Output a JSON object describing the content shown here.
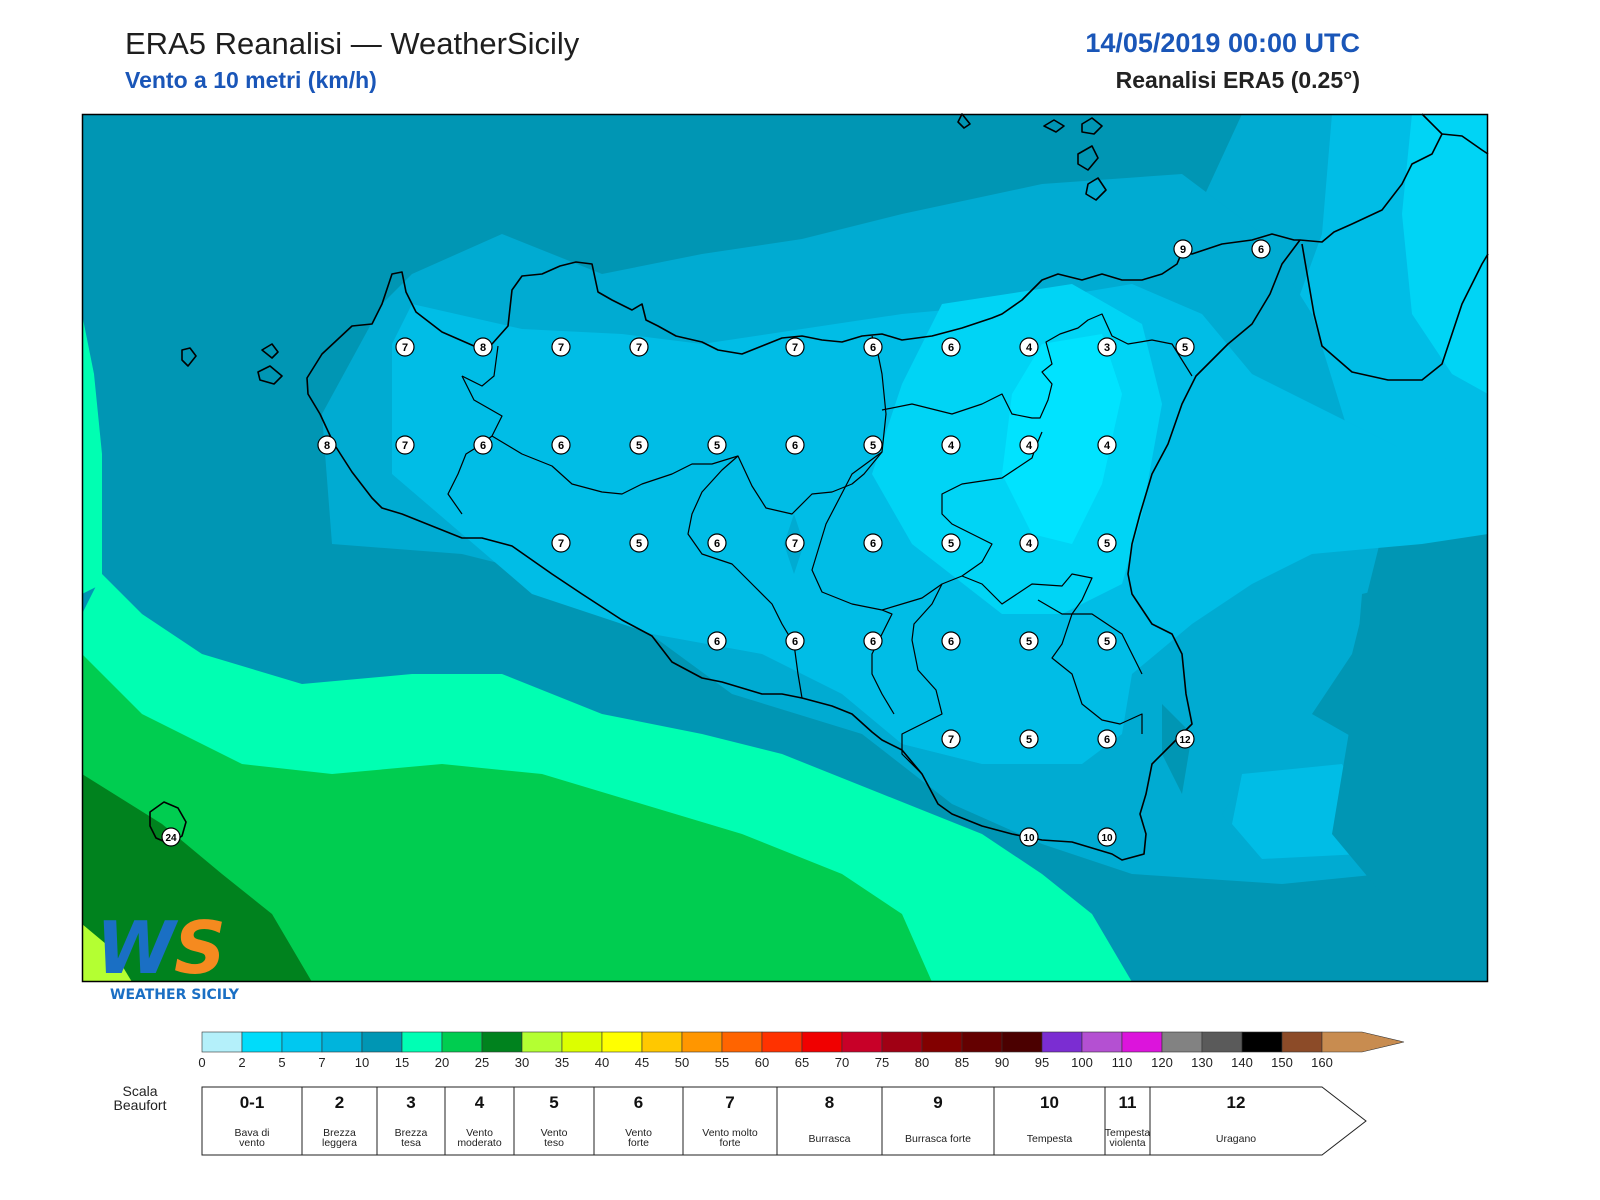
{
  "header": {
    "title": "ERA5 Reanalisi — WeatherSicily",
    "subtitle": "Vento a 10 metri (km/h)",
    "datetime": "14/05/2019 00:00 UTC",
    "model": "Reanalisi ERA5 (0.25°)"
  },
  "colors": {
    "sea_base": "#0096b4",
    "band_5_7": "#00bde6",
    "band_7_10": "#00abd2",
    "band_2_5": "#00d4f5",
    "band_15_20": "#00ffb2",
    "band_20_25": "#00cd50",
    "band_25_30": "#00821e",
    "band_30_35": "#b4ff32",
    "coast": "#000000"
  },
  "wind_labels": [
    {
      "lon_idx": 0,
      "value": "7"
    },
    {
      "value": "8"
    },
    {
      "value": "7"
    },
    {
      "value": "7"
    },
    {
      "value": "7"
    },
    {
      "value": "6"
    },
    {
      "value": "6"
    },
    {
      "value": "4"
    },
    {
      "value": "3"
    },
    {
      "value": "5"
    },
    {
      "value": "8"
    },
    {
      "value": "7"
    },
    {
      "value": "6"
    },
    {
      "value": "6"
    },
    {
      "value": "5"
    },
    {
      "value": "5"
    },
    {
      "value": "6"
    },
    {
      "value": "5"
    },
    {
      "value": "4"
    },
    {
      "value": "4"
    },
    {
      "value": "4"
    },
    {
      "value": "7"
    },
    {
      "value": "5"
    },
    {
      "value": "6"
    },
    {
      "value": "7"
    },
    {
      "value": "6"
    },
    {
      "value": "5"
    },
    {
      "value": "4"
    },
    {
      "value": "5"
    },
    {
      "value": "6"
    },
    {
      "value": "6"
    },
    {
      "value": "6"
    },
    {
      "value": "6"
    },
    {
      "value": "5"
    },
    {
      "value": "5"
    },
    {
      "value": "7"
    },
    {
      "value": "5"
    },
    {
      "value": "6"
    },
    {
      "value": "12"
    },
    {
      "value": "10"
    },
    {
      "value": "10"
    },
    {
      "value": "9"
    },
    {
      "value": "6"
    },
    {
      "value": "24"
    }
  ],
  "colorbar": {
    "ticks": [
      "0",
      "2",
      "5",
      "7",
      "10",
      "15",
      "20",
      "25",
      "30",
      "35",
      "40",
      "45",
      "50",
      "55",
      "60",
      "65",
      "70",
      "75",
      "80",
      "85",
      "90",
      "95",
      "100",
      "110",
      "120",
      "130",
      "140",
      "150",
      "160"
    ],
    "colors": [
      "#b4f0fa",
      "#00dcfa",
      "#00c8f0",
      "#00b4dc",
      "#0096b4",
      "#00ffb4",
      "#00cd50",
      "#00821e",
      "#b4ff32",
      "#dcff00",
      "#ffff00",
      "#ffc800",
      "#ff9600",
      "#ff6400",
      "#ff3200",
      "#f00000",
      "#c80028",
      "#a00014",
      "#820000",
      "#640000",
      "#4b0000",
      "#7b2dd2",
      "#b450d2",
      "#dc14dc",
      "#828282",
      "#5a5a5a",
      "#000000",
      "#8c4b28",
      "#c88c50"
    ]
  },
  "beaufort": {
    "label": "Scala Beaufort",
    "levels": [
      {
        "num": "0-1",
        "name": "Bava di vento"
      },
      {
        "num": "2",
        "name": "Brezza leggera"
      },
      {
        "num": "3",
        "name": "Brezza tesa"
      },
      {
        "num": "4",
        "name": "Vento moderato"
      },
      {
        "num": "5",
        "name": "Vento teso"
      },
      {
        "num": "6",
        "name": "Vento forte"
      },
      {
        "num": "7",
        "name": "Vento molto forte"
      },
      {
        "num": "8",
        "name": "Burrasca"
      },
      {
        "num": "9",
        "name": "Burrasca forte"
      },
      {
        "num": "10",
        "name": "Tempesta"
      },
      {
        "num": "11",
        "name": "Tempesta violenta"
      },
      {
        "num": "12",
        "name": "Uragano"
      }
    ]
  },
  "logo": {
    "letters": "WS",
    "text": "WEATHER SICILY"
  }
}
